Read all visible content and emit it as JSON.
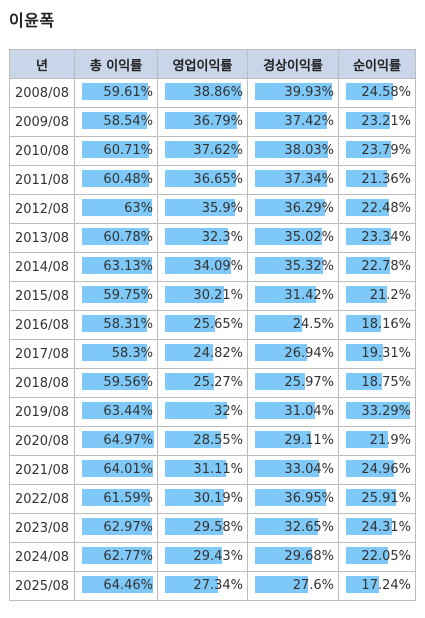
{
  "title": "이윤폭",
  "colors": {
    "header_bg": "#c9d6e9",
    "bar": "#7ec9f8",
    "border": "#bdbdbd"
  },
  "table": {
    "headers": [
      "년",
      "총 이익률",
      "영업이익률",
      "경상이익률",
      "순이익률"
    ],
    "rows": [
      {
        "year": "2008/08",
        "total": "59.61%",
        "op": "38.86%",
        "pre": "39.93%",
        "net": "24.58%"
      },
      {
        "year": "2009/08",
        "total": "58.54%",
        "op": "36.79%",
        "pre": "37.42%",
        "net": "23.21%"
      },
      {
        "year": "2010/08",
        "total": "60.71%",
        "op": "37.62%",
        "pre": "38.03%",
        "net": "23.79%"
      },
      {
        "year": "2011/08",
        "total": "60.48%",
        "op": "36.65%",
        "pre": "37.34%",
        "net": "21.36%"
      },
      {
        "year": "2012/08",
        "total": "63%",
        "op": "35.9%",
        "pre": "36.29%",
        "net": "22.48%"
      },
      {
        "year": "2013/08",
        "total": "60.78%",
        "op": "32.3%",
        "pre": "35.02%",
        "net": "23.34%"
      },
      {
        "year": "2014/08",
        "total": "63.13%",
        "op": "34.09%",
        "pre": "35.32%",
        "net": "22.78%"
      },
      {
        "year": "2015/08",
        "total": "59.75%",
        "op": "30.21%",
        "pre": "31.42%",
        "net": "21.2%"
      },
      {
        "year": "2016/08",
        "total": "58.31%",
        "op": "25.65%",
        "pre": "24.5%",
        "net": "18.16%"
      },
      {
        "year": "2017/08",
        "total": "58.3%",
        "op": "24.82%",
        "pre": "26.94%",
        "net": "19.31%"
      },
      {
        "year": "2018/08",
        "total": "59.56%",
        "op": "25.27%",
        "pre": "25.97%",
        "net": "18.75%"
      },
      {
        "year": "2019/08",
        "total": "63.44%",
        "op": "32%",
        "pre": "31.04%",
        "net": "33.29%"
      },
      {
        "year": "2020/08",
        "total": "64.97%",
        "op": "28.55%",
        "pre": "29.11%",
        "net": "21.9%"
      },
      {
        "year": "2021/08",
        "total": "64.01%",
        "op": "31.11%",
        "pre": "33.04%",
        "net": "24.96%"
      },
      {
        "year": "2022/08",
        "total": "61.59%",
        "op": "30.19%",
        "pre": "36.95%",
        "net": "25.91%"
      },
      {
        "year": "2023/08",
        "total": "62.97%",
        "op": "29.58%",
        "pre": "32.65%",
        "net": "24.31%"
      },
      {
        "year": "2024/08",
        "total": "62.77%",
        "op": "29.43%",
        "pre": "29.68%",
        "net": "22.05%"
      },
      {
        "year": "2025/08",
        "total": "64.46%",
        "op": "27.34%",
        "pre": "27.6%",
        "net": "17.24%"
      }
    ]
  }
}
